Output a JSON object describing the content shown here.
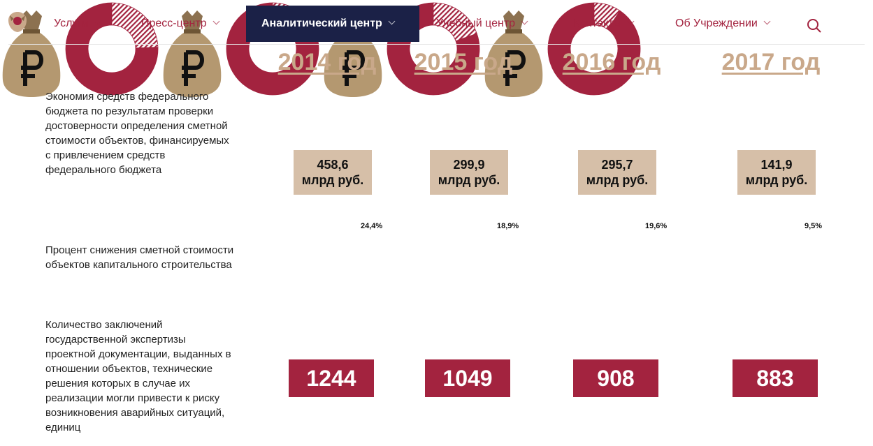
{
  "nav": {
    "items": [
      "Услуги",
      "Пресс-центр",
      "Аналитический центр",
      "Учебный центр",
      "Контакты",
      "Об Учреждении"
    ],
    "active": 2
  },
  "rows": [
    "Экономия средств федерального бюджета по результатам проверки достоверности определения сметной стоимости объектов, финансируемых с привлечением средств федерального бюджета",
    "Процент снижения сметной стоимости объектов капитального строительства",
    "Количество заключений государственной экспертизы проектной документации, выданных в отношении объектов, технические решения которых в случае их реализации могли привести к риску возникновения аварийных ситуаций, единиц"
  ],
  "years": [
    {
      "year": "2014 год",
      "savings": "458,6",
      "unit": "млрд руб.",
      "percent": 24.4,
      "percent_label": "24,4%",
      "count": 1244
    },
    {
      "year": "2015 год",
      "savings": "299,9",
      "unit": "млрд руб.",
      "percent": 18.9,
      "percent_label": "18,9%",
      "count": 1049
    },
    {
      "year": "2016 год",
      "savings": "295,7",
      "unit": "млрд руб.",
      "percent": 19.6,
      "percent_label": "19,6%",
      "count": 908
    },
    {
      "year": "2017 год",
      "savings": "141,9",
      "unit": "млрд руб.",
      "percent": 9.5,
      "percent_label": "9,5%",
      "count": 883
    }
  ]
}
